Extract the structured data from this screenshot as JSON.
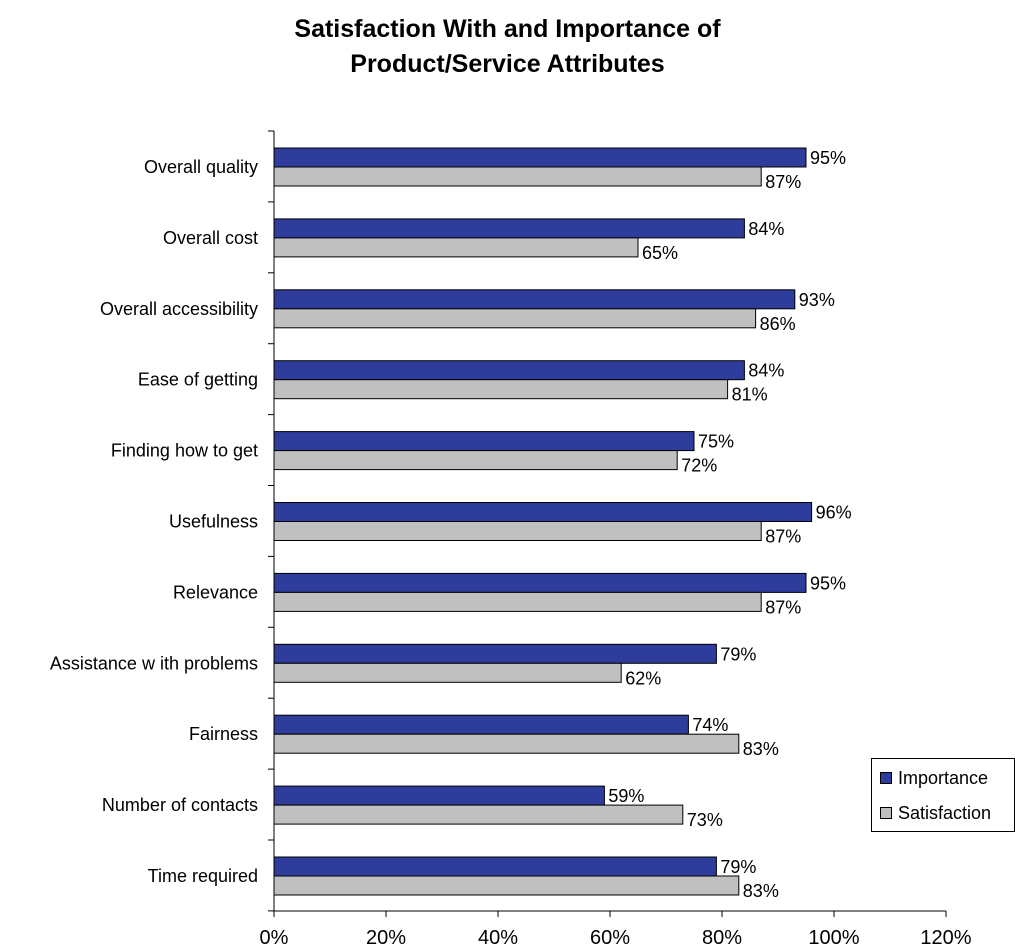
{
  "chart_data": {
    "type": "bar",
    "orientation": "horizontal",
    "title_line1": "Satisfaction With and Importance of",
    "title_line2": "Product/Service Attributes",
    "categories": [
      "Overall quality",
      "Overall cost",
      "Overall accessibility",
      "Ease of getting",
      "Finding how  to get",
      "Usefulness",
      "Relevance",
      "Assistance w ith problems",
      "Fairness",
      "Number of contacts",
      "Time required"
    ],
    "series": [
      {
        "name": "Importance",
        "color": "#2E3C9C",
        "values": [
          95,
          84,
          93,
          84,
          75,
          96,
          95,
          79,
          74,
          59,
          79
        ],
        "labels": [
          "95%",
          "84%",
          "93%",
          "84%",
          "75%",
          "96%",
          "95%",
          "79%",
          "74%",
          "59%",
          "79%"
        ]
      },
      {
        "name": "Satisfaction",
        "color": "#C0C0C0",
        "values": [
          87,
          65,
          86,
          81,
          72,
          87,
          87,
          62,
          83,
          73,
          83
        ],
        "labels": [
          "87%",
          "65%",
          "86%",
          "81%",
          "72%",
          "87%",
          "87%",
          "62%",
          "83%",
          "73%",
          "83%"
        ]
      }
    ],
    "xlim": [
      0,
      120
    ],
    "x_ticks": [
      0,
      20,
      40,
      60,
      80,
      100,
      120
    ],
    "x_tick_labels": [
      "0%",
      "20%",
      "40%",
      "60%",
      "80%",
      "100%",
      "120%"
    ],
    "xlabel": "",
    "ylabel": "",
    "grid": false,
    "legend": {
      "position": "right",
      "items": [
        "Importance",
        "Satisfaction"
      ]
    }
  }
}
